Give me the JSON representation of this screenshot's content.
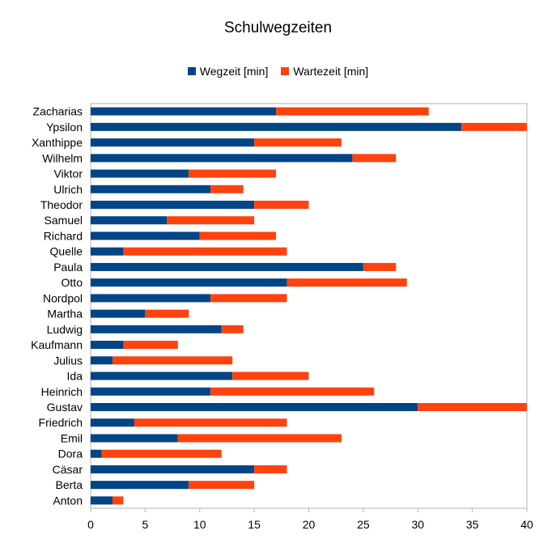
{
  "chart_data": {
    "type": "bar",
    "orientation": "horizontal",
    "stacked": true,
    "title": "Schulwegzeiten",
    "categories": [
      "Anton",
      "Berta",
      "Cäsar",
      "Dora",
      "Emil",
      "Friedrich",
      "Gustav",
      "Heinrich",
      "Ida",
      "Julius",
      "Kaufmann",
      "Ludwig",
      "Martha",
      "Nordpol",
      "Otto",
      "Paula",
      "Quelle",
      "Richard",
      "Samuel",
      "Theodor",
      "Ulrich",
      "Viktor",
      "Wilhelm",
      "Xanthippe",
      "Ypsilon",
      "Zacharias"
    ],
    "series": [
      {
        "name": "Wegzeit [min]",
        "color": "#004586",
        "values": [
          2,
          9,
          15,
          1,
          8,
          4,
          30,
          11,
          13,
          2,
          3,
          12,
          5,
          11,
          18,
          25,
          3,
          10,
          7,
          15,
          11,
          9,
          24,
          15,
          34,
          17
        ]
      },
      {
        "name": "Wartezeit [min]",
        "color": "#ff420e",
        "values": [
          1,
          6,
          3,
          11,
          15,
          14,
          10,
          15,
          7,
          11,
          5,
          2,
          4,
          7,
          11,
          3,
          15,
          7,
          8,
          5,
          3,
          8,
          4,
          8,
          6,
          14
        ]
      }
    ],
    "xlim": [
      0,
      40
    ],
    "xticks": [
      "0",
      "5",
      "10",
      "15",
      "20",
      "25",
      "30",
      "35",
      "40"
    ],
    "legend_position": "top",
    "grid": false
  }
}
